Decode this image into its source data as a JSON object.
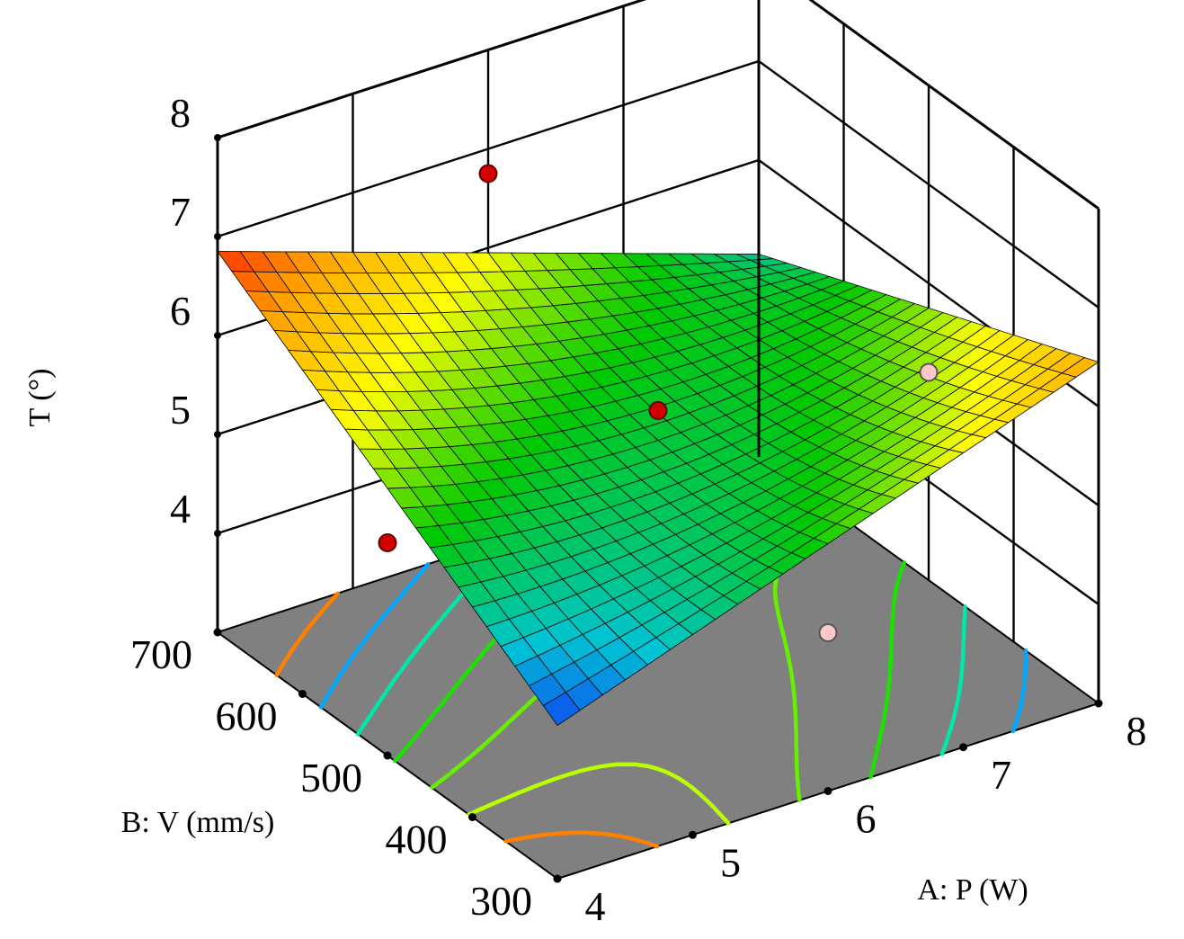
{
  "chart_data": {
    "type": "surface3d",
    "title": "",
    "x": {
      "label": "A: P (W)",
      "range": [
        4,
        8
      ],
      "ticks": [
        4,
        5,
        6,
        7,
        8
      ],
      "tick_labels": [
        "4",
        "5",
        "6",
        "7",
        "8"
      ]
    },
    "y": {
      "label": "B: V (mm/s)",
      "range": [
        300,
        700
      ],
      "ticks": [
        300,
        400,
        500,
        600,
        700
      ],
      "tick_labels": [
        "300",
        "400",
        "500",
        "600",
        "700"
      ]
    },
    "z": {
      "label": "T (°)",
      "range": [
        3,
        8
      ],
      "ticks": [
        4,
        5,
        6,
        7,
        8
      ],
      "tick_labels": [
        "4",
        "5",
        "6",
        "7",
        "8"
      ]
    },
    "surface_corners": [
      {
        "P": 4,
        "V": 700,
        "T": 6.85
      },
      {
        "P": 8,
        "V": 700,
        "T": 5.05
      },
      {
        "P": 4,
        "V": 300,
        "T": 4.55
      },
      {
        "P": 8,
        "V": 300,
        "T": 6.45
      }
    ],
    "surface_center": {
      "P": 6,
      "V": 500,
      "T": 5.3
    },
    "design_points": [
      {
        "P": 4,
        "V": 500,
        "T": 5.15,
        "position": "above surface"
      },
      {
        "P": 6,
        "V": 700,
        "T": 6.75,
        "position": "above surface"
      },
      {
        "P": 6,
        "V": 500,
        "T": 5.6,
        "position": "above surface"
      },
      {
        "P": 8,
        "V": 500,
        "T": 5.1,
        "position": "below surface"
      },
      {
        "P": 6,
        "V": 300,
        "T": 4.6,
        "position": "below surface"
      }
    ],
    "contour_floor": true,
    "color_scale": [
      "#1414ff",
      "#00c4d4",
      "#00c800",
      "#ffff00",
      "#ffa500",
      "#ff0000"
    ],
    "floor_color": "#808080"
  }
}
